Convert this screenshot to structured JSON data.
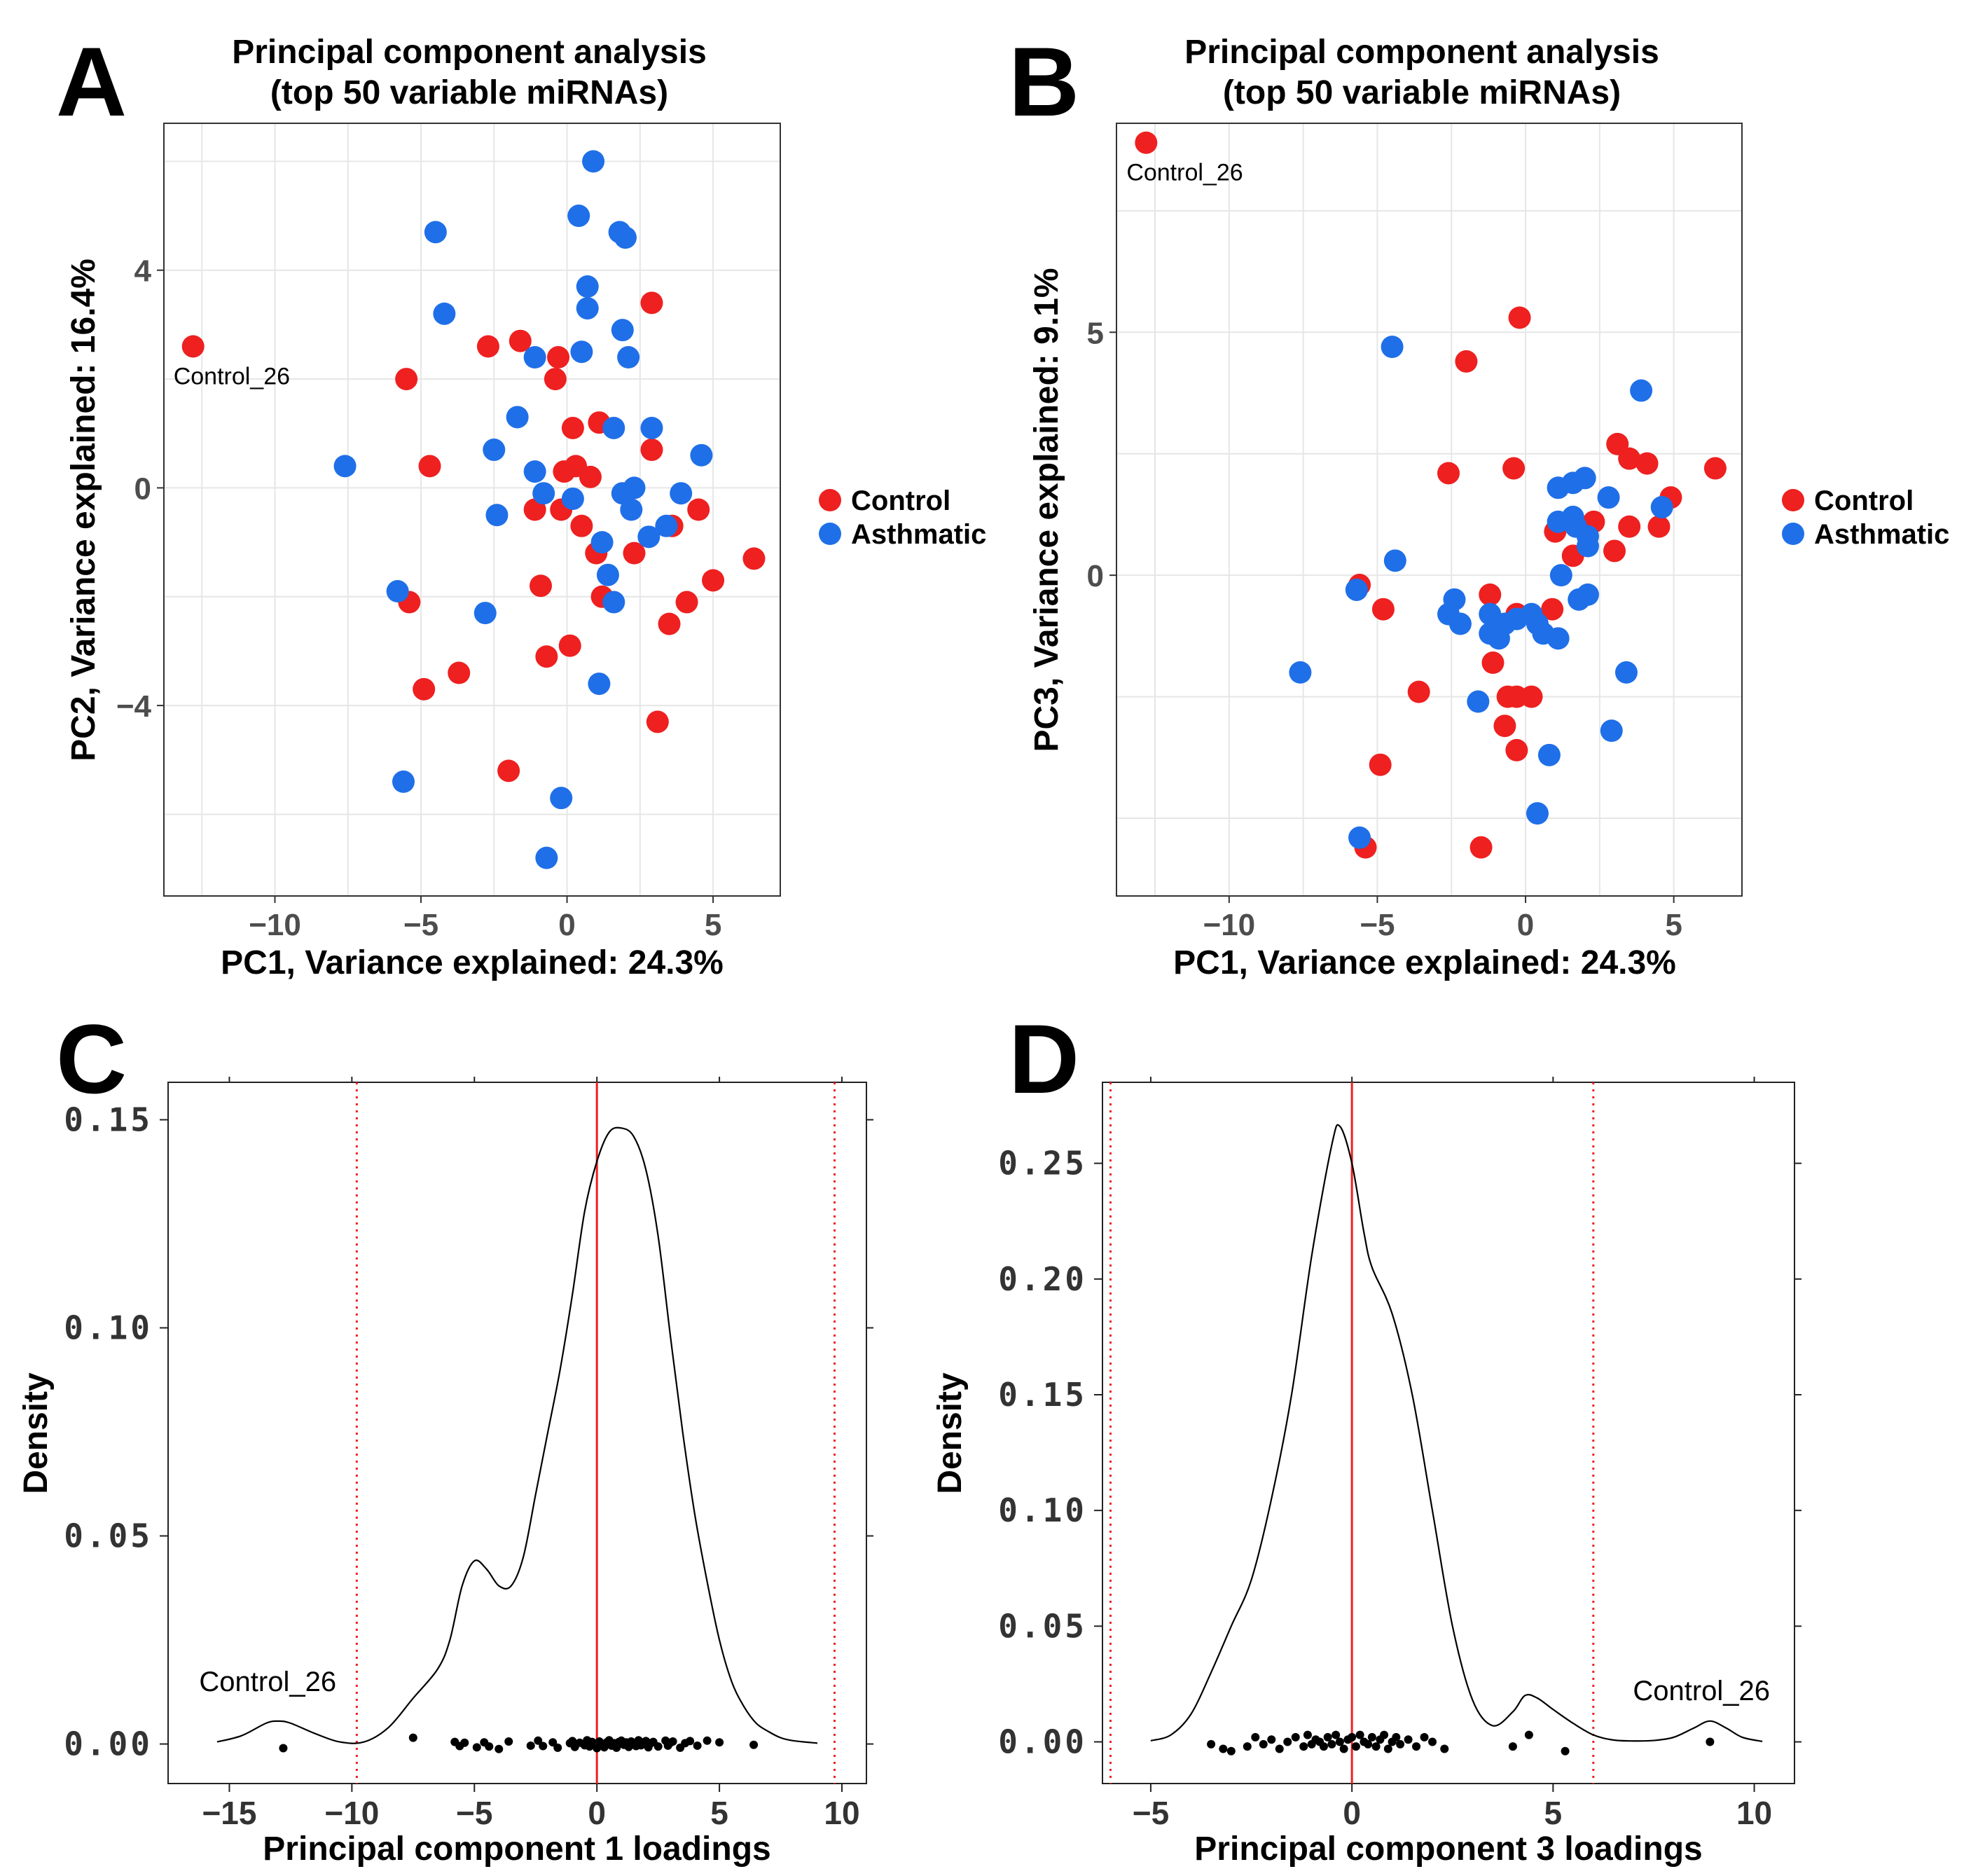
{
  "colors": {
    "control": "#ee2020",
    "asthmatic": "#1f6fe8",
    "grid": "#e6e6e6",
    "ref_line": "#ee2020"
  },
  "chart_data": [
    {
      "panel": "A",
      "type": "scatter",
      "title_line1": "Principal component analysis",
      "title_line2": "(top 50 variable miRNAs)",
      "xlabel": "PC1, Variance explained: 24.3%",
      "ylabel": "PC2, Variance explained: 16.4%",
      "xlim": [
        -13.8,
        7.3
      ],
      "ylim": [
        -7.5,
        6.7
      ],
      "xticks": [
        -10,
        -5,
        0,
        5
      ],
      "yticks": [
        -4,
        0,
        4
      ],
      "xtick_labels": [
        "−10",
        "−5",
        "0",
        "5"
      ],
      "ytick_labels": [
        "−4",
        "0",
        "4"
      ],
      "legend": [
        "Control",
        "Asthmatic"
      ],
      "annotation": {
        "text": "Control_26",
        "x": -12.8,
        "y": 2.6
      },
      "series": [
        {
          "name": "Control",
          "points": [
            [
              -12.8,
              2.6
            ],
            [
              -5.5,
              2.0
            ],
            [
              -4.7,
              0.4
            ],
            [
              -5.4,
              -2.1
            ],
            [
              -4.9,
              -3.7
            ],
            [
              -3.7,
              -3.4
            ],
            [
              -2.7,
              2.6
            ],
            [
              -1.6,
              2.7
            ],
            [
              -1.1,
              -0.4
            ],
            [
              -0.9,
              -1.8
            ],
            [
              -0.7,
              -3.1
            ],
            [
              -0.4,
              2.0
            ],
            [
              -0.3,
              2.4
            ],
            [
              -0.2,
              -0.4
            ],
            [
              -0.1,
              0.3
            ],
            [
              0.1,
              -2.9
            ],
            [
              0.2,
              1.1
            ],
            [
              0.3,
              0.4
            ],
            [
              0.5,
              -0.7
            ],
            [
              0.8,
              0.2
            ],
            [
              1.0,
              -1.2
            ],
            [
              1.1,
              1.2
            ],
            [
              1.2,
              -2.0
            ],
            [
              2.3,
              -1.2
            ],
            [
              2.9,
              0.7
            ],
            [
              2.9,
              3.4
            ],
            [
              3.1,
              -4.3
            ],
            [
              3.6,
              -0.7
            ],
            [
              3.5,
              -2.5
            ],
            [
              4.1,
              -2.1
            ],
            [
              4.5,
              -0.4
            ],
            [
              5.0,
              -1.7
            ],
            [
              6.4,
              -1.3
            ],
            [
              -2.0,
              -5.2
            ]
          ]
        },
        {
          "name": "Asthmatic",
          "points": [
            [
              0.9,
              6.0
            ],
            [
              0.4,
              5.0
            ],
            [
              -4.5,
              4.7
            ],
            [
              1.8,
              4.7
            ],
            [
              2.0,
              4.6
            ],
            [
              0.7,
              3.7
            ],
            [
              0.7,
              3.3
            ],
            [
              -4.2,
              3.2
            ],
            [
              1.9,
              2.9
            ],
            [
              0.5,
              2.5
            ],
            [
              2.1,
              2.4
            ],
            [
              -1.1,
              2.4
            ],
            [
              -1.7,
              1.3
            ],
            [
              1.6,
              1.1
            ],
            [
              2.9,
              1.1
            ],
            [
              -2.5,
              0.7
            ],
            [
              4.6,
              0.6
            ],
            [
              -7.6,
              0.4
            ],
            [
              -1.1,
              0.3
            ],
            [
              2.3,
              0.0
            ],
            [
              1.9,
              -0.1
            ],
            [
              3.9,
              -0.1
            ],
            [
              -0.8,
              -0.1
            ],
            [
              0.2,
              -0.2
            ],
            [
              2.2,
              -0.4
            ],
            [
              -2.4,
              -0.5
            ],
            [
              3.4,
              -0.7
            ],
            [
              2.8,
              -0.9
            ],
            [
              1.2,
              -1.0
            ],
            [
              1.4,
              -1.6
            ],
            [
              -5.8,
              -1.9
            ],
            [
              1.6,
              -2.1
            ],
            [
              -2.8,
              -2.3
            ],
            [
              1.1,
              -3.6
            ],
            [
              -5.6,
              -5.4
            ],
            [
              -0.2,
              -5.7
            ],
            [
              -0.7,
              -6.8
            ]
          ]
        }
      ]
    },
    {
      "panel": "B",
      "type": "scatter",
      "title_line1": "Principal component analysis",
      "title_line2": "(top 50 variable miRNAs)",
      "xlabel": "PC1, Variance explained: 24.3%",
      "ylabel": "PC3, Variance explained: 9.1%",
      "xlim": [
        -13.8,
        7.3
      ],
      "ylim": [
        -6.6,
        9.3
      ],
      "xticks": [
        -10,
        -5,
        0,
        5
      ],
      "yticks": [
        0,
        5
      ],
      "xtick_labels": [
        "−10",
        "−5",
        "0",
        "5"
      ],
      "ytick_labels": [
        "0",
        "5"
      ],
      "legend": [
        "Control",
        "Asthmatic"
      ],
      "annotation": {
        "text": "Control_26",
        "x": -12.8,
        "y": 8.9
      },
      "series": [
        {
          "name": "Control",
          "points": [
            [
              -12.8,
              8.9
            ],
            [
              -0.2,
              5.3
            ],
            [
              -2.0,
              4.4
            ],
            [
              -2.6,
              2.1
            ],
            [
              -0.4,
              2.2
            ],
            [
              3.1,
              2.7
            ],
            [
              3.5,
              2.4
            ],
            [
              4.1,
              2.3
            ],
            [
              6.4,
              2.2
            ],
            [
              4.9,
              1.6
            ],
            [
              2.3,
              1.1
            ],
            [
              3.5,
              1.0
            ],
            [
              4.5,
              1.0
            ],
            [
              1.0,
              0.9
            ],
            [
              1.6,
              0.4
            ],
            [
              3.0,
              0.5
            ],
            [
              -5.6,
              -0.2
            ],
            [
              -4.8,
              -0.7
            ],
            [
              -1.2,
              -0.4
            ],
            [
              -0.3,
              -0.8
            ],
            [
              0.9,
              -0.7
            ],
            [
              -1.1,
              -1.8
            ],
            [
              -3.6,
              -2.4
            ],
            [
              -0.3,
              -2.5
            ],
            [
              -0.6,
              -2.5
            ],
            [
              0.2,
              -2.5
            ],
            [
              -0.7,
              -3.1
            ],
            [
              -0.3,
              -3.6
            ],
            [
              -4.9,
              -3.9
            ],
            [
              -1.5,
              -5.6
            ],
            [
              -5.4,
              -5.6
            ]
          ]
        },
        {
          "name": "Asthmatic",
          "points": [
            [
              -4.5,
              4.7
            ],
            [
              3.9,
              3.8
            ],
            [
              2.0,
              2.0
            ],
            [
              1.6,
              1.9
            ],
            [
              1.1,
              1.8
            ],
            [
              2.8,
              1.6
            ],
            [
              4.6,
              1.4
            ],
            [
              1.6,
              1.2
            ],
            [
              1.1,
              1.1
            ],
            [
              1.7,
              1.0
            ],
            [
              2.1,
              0.8
            ],
            [
              2.1,
              0.6
            ],
            [
              1.2,
              0.0
            ],
            [
              -4.4,
              0.3
            ],
            [
              1.8,
              -0.5
            ],
            [
              2.1,
              -0.4
            ],
            [
              -2.6,
              -0.8
            ],
            [
              -2.4,
              -0.5
            ],
            [
              -2.2,
              -1.0
            ],
            [
              -1.2,
              -0.8
            ],
            [
              -1.2,
              -1.2
            ],
            [
              -0.7,
              -1.0
            ],
            [
              -0.3,
              -0.9
            ],
            [
              0.2,
              -0.8
            ],
            [
              0.6,
              -1.2
            ],
            [
              1.1,
              -1.3
            ],
            [
              0.4,
              -1.0
            ],
            [
              -0.9,
              -1.3
            ],
            [
              -5.7,
              -0.3
            ],
            [
              -7.6,
              -2.0
            ],
            [
              -1.6,
              -2.6
            ],
            [
              0.8,
              -3.7
            ],
            [
              3.4,
              -2.0
            ],
            [
              2.9,
              -3.2
            ],
            [
              0.4,
              -4.9
            ],
            [
              -5.6,
              -5.4
            ]
          ]
        }
      ]
    },
    {
      "panel": "C",
      "type": "density",
      "xlabel": "Principal component 1 loadings",
      "ylabel": "Density",
      "xlim": [
        -17.5,
        11.0
      ],
      "ylim": [
        -0.0095,
        0.159
      ],
      "xticks": [
        -15,
        -10,
        -5,
        0,
        5,
        10
      ],
      "yticks": [
        0.0,
        0.05,
        0.1,
        0.15
      ],
      "xtick_labels": [
        "−15",
        "−10",
        "−5",
        "0",
        "5",
        "10"
      ],
      "ytick_labels": [
        "0.00",
        "0.05",
        "0.10",
        "0.15"
      ],
      "annotation": {
        "text": "Control_26",
        "x": -12.8,
        "y": 0.011
      },
      "solid_vline": 0,
      "dotted_vlines": [
        -9.8,
        9.7
      ],
      "curve": {
        "x": [
          -15.5,
          -14.5,
          -13.5,
          -13.0,
          -12.5,
          -11.5,
          -10.5,
          -9.5,
          -8.5,
          -7.5,
          -6.5,
          -6.0,
          -5.5,
          -5.0,
          -4.5,
          -4.0,
          -3.5,
          -3.0,
          -2.5,
          -2.0,
          -1.5,
          -1.0,
          -0.5,
          0.0,
          0.5,
          1.0,
          1.5,
          2.0,
          2.5,
          3.0,
          3.5,
          4.0,
          4.5,
          5.0,
          5.5,
          6.0,
          6.5,
          7.0,
          7.5,
          8.0,
          9.0
        ],
        "y": [
          0.0005,
          0.002,
          0.005,
          0.0055,
          0.005,
          0.0025,
          0.0005,
          0.0005,
          0.004,
          0.011,
          0.018,
          0.025,
          0.038,
          0.044,
          0.042,
          0.038,
          0.038,
          0.045,
          0.06,
          0.075,
          0.09,
          0.108,
          0.128,
          0.14,
          0.147,
          0.148,
          0.146,
          0.138,
          0.122,
          0.098,
          0.075,
          0.055,
          0.039,
          0.025,
          0.015,
          0.009,
          0.005,
          0.003,
          0.0015,
          0.0008,
          0.0002
        ]
      },
      "rug_x": [
        -12.8,
        -7.5,
        -5.8,
        -5.6,
        -5.4,
        -4.9,
        -4.6,
        -4.4,
        -4.0,
        -3.6,
        -2.7,
        -2.4,
        -2.2,
        -1.8,
        -1.6,
        -1.1,
        -1.0,
        -0.9,
        -0.7,
        -0.5,
        -0.4,
        -0.3,
        -0.2,
        0.0,
        0.1,
        0.2,
        0.3,
        0.4,
        0.5,
        0.6,
        0.7,
        0.8,
        0.9,
        1.0,
        1.1,
        1.2,
        1.3,
        1.4,
        1.5,
        1.6,
        1.7,
        1.8,
        1.9,
        2.0,
        2.1,
        2.2,
        2.3,
        2.5,
        2.8,
        2.9,
        3.0,
        3.1,
        3.4,
        3.6,
        3.8,
        4.1,
        4.5,
        5.0,
        6.4
      ],
      "rug_y": [
        -0.001,
        0.0015,
        0.0005,
        -0.0005,
        0.0003,
        -0.0008,
        0.0004,
        -0.0006,
        -0.0012,
        0.0006,
        -0.0004,
        0.0008,
        -0.0005,
        0.0004,
        -0.0009,
        0.0002,
        0.0007,
        -0.0007,
        0.0003,
        -0.0003,
        0.0009,
        -0.0006,
        0.0005,
        -0.001,
        0.0006,
        0.0,
        -0.0008,
        0.0004,
        0.0009,
        -0.0004,
        0.0002,
        -0.0009,
        0.0005,
        0.0008,
        -0.0002,
        0.0004,
        -0.0007,
        0.0006,
        0.0001,
        -0.0005,
        0.0009,
        -0.0003,
        0.0004,
        0.0007,
        -0.0008,
        0.0002,
        0.0005,
        -0.0006,
        0.0008,
        -0.0004,
        0.0003,
        0.0006,
        -0.0009,
        0.0002,
        0.0007,
        -0.0004,
        0.0008,
        0.0004,
        -0.0002
      ]
    },
    {
      "panel": "D",
      "type": "density",
      "xlabel": "Principal component 3 loadings",
      "ylabel": "Density",
      "xlim": [
        -6.2,
        11.0
      ],
      "ylim": [
        -0.018,
        0.285
      ],
      "xticks": [
        -5,
        0,
        5,
        10
      ],
      "yticks": [
        0.0,
        0.05,
        0.1,
        0.15,
        0.2,
        0.25
      ],
      "xtick_labels": [
        "−5",
        "0",
        "5",
        "10"
      ],
      "ytick_labels": [
        "0.00",
        "0.05",
        "0.10",
        "0.15",
        "0.20",
        "0.25"
      ],
      "annotation": {
        "text": "Control_26",
        "x": 8.9,
        "y": 0.018
      },
      "solid_vline": 0,
      "dotted_vlines": [
        -6.0,
        6.0
      ],
      "curve": {
        "x": [
          -5.0,
          -4.5,
          -4.0,
          -3.5,
          -3.0,
          -2.5,
          -2.0,
          -1.5,
          -1.0,
          -0.5,
          -0.3,
          0.0,
          0.3,
          0.5,
          1.0,
          1.5,
          2.0,
          2.5,
          3.0,
          3.5,
          4.0,
          4.3,
          4.6,
          5.0,
          5.5,
          6.0,
          6.5,
          7.0,
          7.5,
          8.0,
          8.5,
          8.9,
          9.3,
          9.7,
          10.2
        ],
        "y": [
          0.0005,
          0.003,
          0.012,
          0.03,
          0.05,
          0.07,
          0.105,
          0.15,
          0.21,
          0.258,
          0.266,
          0.25,
          0.22,
          0.205,
          0.185,
          0.15,
          0.1,
          0.05,
          0.018,
          0.007,
          0.013,
          0.02,
          0.019,
          0.014,
          0.008,
          0.003,
          0.0008,
          0.0004,
          0.0006,
          0.002,
          0.006,
          0.009,
          0.006,
          0.002,
          0.0002
        ]
      },
      "rug_x": [
        -3.5,
        -3.2,
        -3.0,
        -2.6,
        -2.4,
        -2.2,
        -2.0,
        -1.8,
        -1.6,
        -1.4,
        -1.2,
        -1.1,
        -1.0,
        -0.9,
        -0.8,
        -0.7,
        -0.6,
        -0.5,
        -0.4,
        -0.3,
        -0.2,
        -0.1,
        0.0,
        0.1,
        0.2,
        0.3,
        0.4,
        0.5,
        0.6,
        0.7,
        0.8,
        0.9,
        1.0,
        1.1,
        1.2,
        1.4,
        1.6,
        1.8,
        2.0,
        2.3,
        4.0,
        4.4,
        5.3,
        8.9
      ],
      "rug_y": [
        -0.001,
        -0.003,
        -0.004,
        -0.002,
        0.002,
        -0.001,
        0.001,
        -0.003,
        0.0,
        0.002,
        -0.002,
        0.003,
        -0.001,
        0.001,
        0.0,
        -0.002,
        0.002,
        -0.001,
        0.003,
        0.0,
        -0.003,
        0.001,
        0.002,
        -0.002,
        0.003,
        0.0,
        -0.001,
        0.002,
        -0.002,
        0.001,
        0.003,
        -0.003,
        0.0,
        0.002,
        -0.001,
        0.001,
        -0.002,
        0.002,
        0.0,
        -0.003,
        -0.002,
        0.003,
        -0.004,
        0.0
      ]
    }
  ]
}
